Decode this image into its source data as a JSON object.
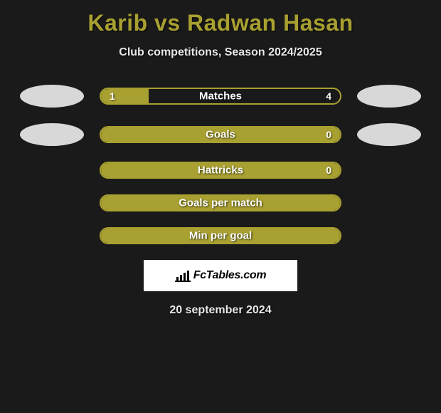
{
  "title": "Karib vs Radwan Hasan",
  "subtitle": "Club competitions, Season 2024/2025",
  "date": "20 september 2024",
  "brand": "FcTables.com",
  "colors": {
    "accent": "#a8a030",
    "bg": "#1a1a1a",
    "text_light": "#e8e8e8",
    "avatar": "#d8d8d8",
    "logo_bg": "#ffffff"
  },
  "rows": [
    {
      "label": "Matches",
      "left": "1",
      "right": "4",
      "left_pct": 20,
      "has_avatars": true,
      "full": false
    },
    {
      "label": "Goals",
      "left": "",
      "right": "0",
      "left_pct": 0,
      "has_avatars": true,
      "full": true
    },
    {
      "label": "Hattricks",
      "left": "",
      "right": "0",
      "left_pct": 0,
      "has_avatars": false,
      "full": true
    },
    {
      "label": "Goals per match",
      "left": "",
      "right": "",
      "left_pct": 0,
      "has_avatars": false,
      "full": true
    },
    {
      "label": "Min per goal",
      "left": "",
      "right": "",
      "left_pct": 0,
      "has_avatars": false,
      "full": true
    }
  ]
}
